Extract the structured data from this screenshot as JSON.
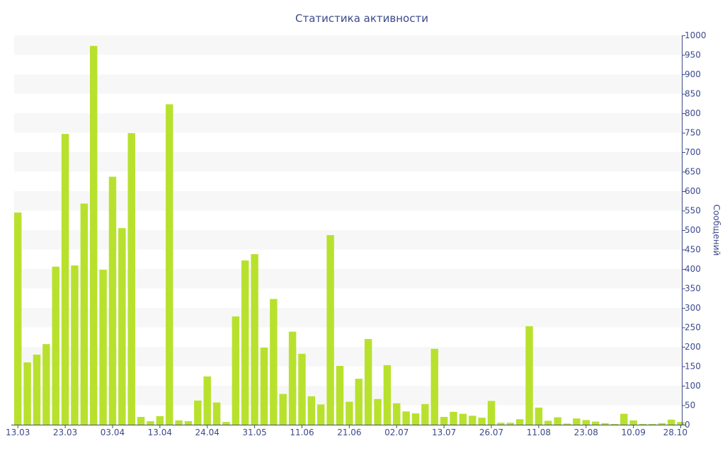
{
  "chart_data": {
    "type": "bar",
    "title": "Статистика активности",
    "ylabel": "Сообщений",
    "xlabel": "",
    "ylim": [
      0,
      1000
    ],
    "y_tick_step": 50,
    "y_axis_side": "right",
    "grid": "alternating horizontal bands",
    "bar_color": "#b8e12e",
    "band_color": "#f7f7f7",
    "axis_color": "#3b4a8a",
    "x_tick_labels": [
      {
        "label": "13.03",
        "at": 0
      },
      {
        "label": "23.03",
        "at": 5
      },
      {
        "label": "03.04",
        "at": 10
      },
      {
        "label": "13.04",
        "at": 15
      },
      {
        "label": "24.04",
        "at": 20
      },
      {
        "label": "31.05",
        "at": 25
      },
      {
        "label": "11.06",
        "at": 30
      },
      {
        "label": "21.06",
        "at": 35
      },
      {
        "label": "02.07",
        "at": 40
      },
      {
        "label": "13.07",
        "at": 45
      },
      {
        "label": "26.07",
        "at": 50
      },
      {
        "label": "11.08",
        "at": 55
      },
      {
        "label": "23.08",
        "at": 60
      },
      {
        "label": "10.09",
        "at": 65
      },
      {
        "label": "28.10",
        "at": 70
      }
    ],
    "values": [
      545,
      160,
      180,
      207,
      406,
      747,
      409,
      568,
      973,
      398,
      637,
      505,
      749,
      20,
      9,
      22,
      823,
      11,
      9,
      62,
      124,
      57,
      7,
      278,
      422,
      438,
      198,
      323,
      79,
      239,
      182,
      73,
      52,
      487,
      151,
      59,
      118,
      220,
      66,
      153,
      55,
      34,
      29,
      53,
      195,
      20,
      33,
      28,
      23,
      18,
      61,
      5,
      5,
      14,
      253,
      44,
      10,
      19,
      3,
      16,
      12,
      8,
      4,
      2,
      28,
      11,
      2,
      2,
      4,
      13,
      7
    ]
  }
}
